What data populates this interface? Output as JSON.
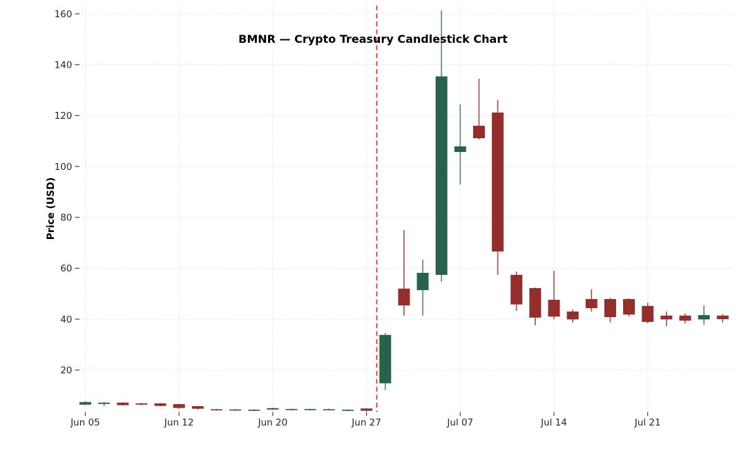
{
  "chart_data": {
    "type": "candlestick",
    "title": "BMNR — Crypto Treasury Candlestick Chart",
    "ylabel": "Price (USD)",
    "xlabel": "",
    "grid": true,
    "legend": "none",
    "background_color": "#ffffff",
    "y_ticks": [
      20,
      40,
      60,
      80,
      100,
      120,
      140,
      160
    ],
    "ylim": [
      3.4,
      163.2
    ],
    "x_tick_labels": [
      "Jun 05",
      "Jun 12",
      "Jun 20",
      "Jun 27",
      "Jul 07",
      "Jul 14",
      "Jul 21"
    ],
    "x_tick_indices": [
      0,
      5,
      10,
      15,
      20,
      25,
      30
    ],
    "colors": {
      "up_body": "#28624a",
      "down_body": "#932e2c",
      "up_wick": "#55876c",
      "down_wick": "#a84b44",
      "grid": "#dcdcdc",
      "tick_mark": "#333333",
      "tick_text": "#262626",
      "title_text": "#000000",
      "annotation_line": "#e5392c"
    },
    "annotation": {
      "type": "vline",
      "style": "dashed",
      "x_index": 15.55,
      "color": "#e5392c"
    },
    "candles": [
      {
        "date": "Jun 05",
        "open": 6.4,
        "high": 7.8,
        "low": 6.2,
        "close": 7.4
      },
      {
        "date": "Jun 06",
        "open": 6.7,
        "high": 7.4,
        "low": 5.8,
        "close": 7.2
      },
      {
        "date": "Jun 09",
        "open": 7.2,
        "high": 7.3,
        "low": 6.0,
        "close": 6.2
      },
      {
        "date": "Jun 10",
        "open": 6.9,
        "high": 7.0,
        "low": 6.2,
        "close": 6.4
      },
      {
        "date": "Jun 11",
        "open": 6.9,
        "high": 7.0,
        "low": 5.7,
        "close": 5.9
      },
      {
        "date": "Jun 12",
        "open": 6.6,
        "high": 6.7,
        "low": 4.8,
        "close": 5.1
      },
      {
        "date": "Jun 13",
        "open": 5.8,
        "high": 5.9,
        "low": 4.5,
        "close": 4.8
      },
      {
        "date": "Jun 16",
        "open": 4.6,
        "high": 4.7,
        "low": 4.0,
        "close": 4.2
      },
      {
        "date": "Jun 17",
        "open": 4.2,
        "high": 4.7,
        "low": 4.0,
        "close": 4.5
      },
      {
        "date": "Jun 18",
        "open": 4.1,
        "high": 4.6,
        "low": 3.9,
        "close": 4.4
      },
      {
        "date": "Jun 20",
        "open": 5.0,
        "high": 5.2,
        "low": 4.4,
        "close": 4.5
      },
      {
        "date": "Jun 23",
        "open": 4.7,
        "high": 4.8,
        "low": 4.1,
        "close": 4.3
      },
      {
        "date": "Jun 24",
        "open": 4.3,
        "high": 4.8,
        "low": 4.1,
        "close": 4.7
      },
      {
        "date": "Jun 25",
        "open": 4.4,
        "high": 4.8,
        "low": 4.2,
        "close": 4.6
      },
      {
        "date": "Jun 26",
        "open": 4.1,
        "high": 4.6,
        "low": 3.9,
        "close": 4.4
      },
      {
        "date": "Jun 27",
        "open": 4.9,
        "high": 5.0,
        "low": 3.7,
        "close": 4.0
      },
      {
        "date": "Jun 30",
        "open": 14.8,
        "high": 34.6,
        "low": 12.1,
        "close": 33.8
      },
      {
        "date": "Jul 01",
        "open": 52.0,
        "high": 75.0,
        "low": 41.4,
        "close": 45.4
      },
      {
        "date": "Jul 02",
        "open": 51.4,
        "high": 63.4,
        "low": 41.4,
        "close": 58.2
      },
      {
        "date": "Jul 03",
        "open": 57.4,
        "high": 161.4,
        "low": 54.7,
        "close": 135.4
      },
      {
        "date": "Jul 07",
        "open": 105.7,
        "high": 124.4,
        "low": 92.9,
        "close": 107.9
      },
      {
        "date": "Jul 08",
        "open": 116.0,
        "high": 134.5,
        "low": 110.6,
        "close": 111.1
      },
      {
        "date": "Jul 09",
        "open": 121.2,
        "high": 126.1,
        "low": 57.4,
        "close": 66.6
      },
      {
        "date": "Jul 10",
        "open": 57.4,
        "high": 58.7,
        "low": 43.3,
        "close": 45.8
      },
      {
        "date": "Jul 11",
        "open": 52.2,
        "high": 52.4,
        "low": 37.6,
        "close": 40.6
      },
      {
        "date": "Jul 14",
        "open": 47.6,
        "high": 59.0,
        "low": 40.0,
        "close": 41.0
      },
      {
        "date": "Jul 15",
        "open": 43.0,
        "high": 43.8,
        "low": 38.7,
        "close": 39.9
      },
      {
        "date": "Jul 16",
        "open": 47.9,
        "high": 51.7,
        "low": 43.0,
        "close": 44.3
      },
      {
        "date": "Jul 17",
        "open": 47.9,
        "high": 48.4,
        "low": 38.7,
        "close": 40.8
      },
      {
        "date": "Jul 18",
        "open": 47.9,
        "high": 48.2,
        "low": 41.1,
        "close": 41.8
      },
      {
        "date": "Jul 21",
        "open": 45.2,
        "high": 46.5,
        "low": 38.4,
        "close": 38.9
      },
      {
        "date": "Jul 22",
        "open": 41.4,
        "high": 43.0,
        "low": 37.3,
        "close": 39.9
      },
      {
        "date": "Jul 23",
        "open": 41.4,
        "high": 42.2,
        "low": 38.4,
        "close": 39.4
      },
      {
        "date": "Jul 24",
        "open": 39.9,
        "high": 45.4,
        "low": 37.8,
        "close": 41.6
      },
      {
        "date": "Jul 25",
        "open": 41.4,
        "high": 41.9,
        "low": 38.7,
        "close": 40.0
      }
    ]
  }
}
